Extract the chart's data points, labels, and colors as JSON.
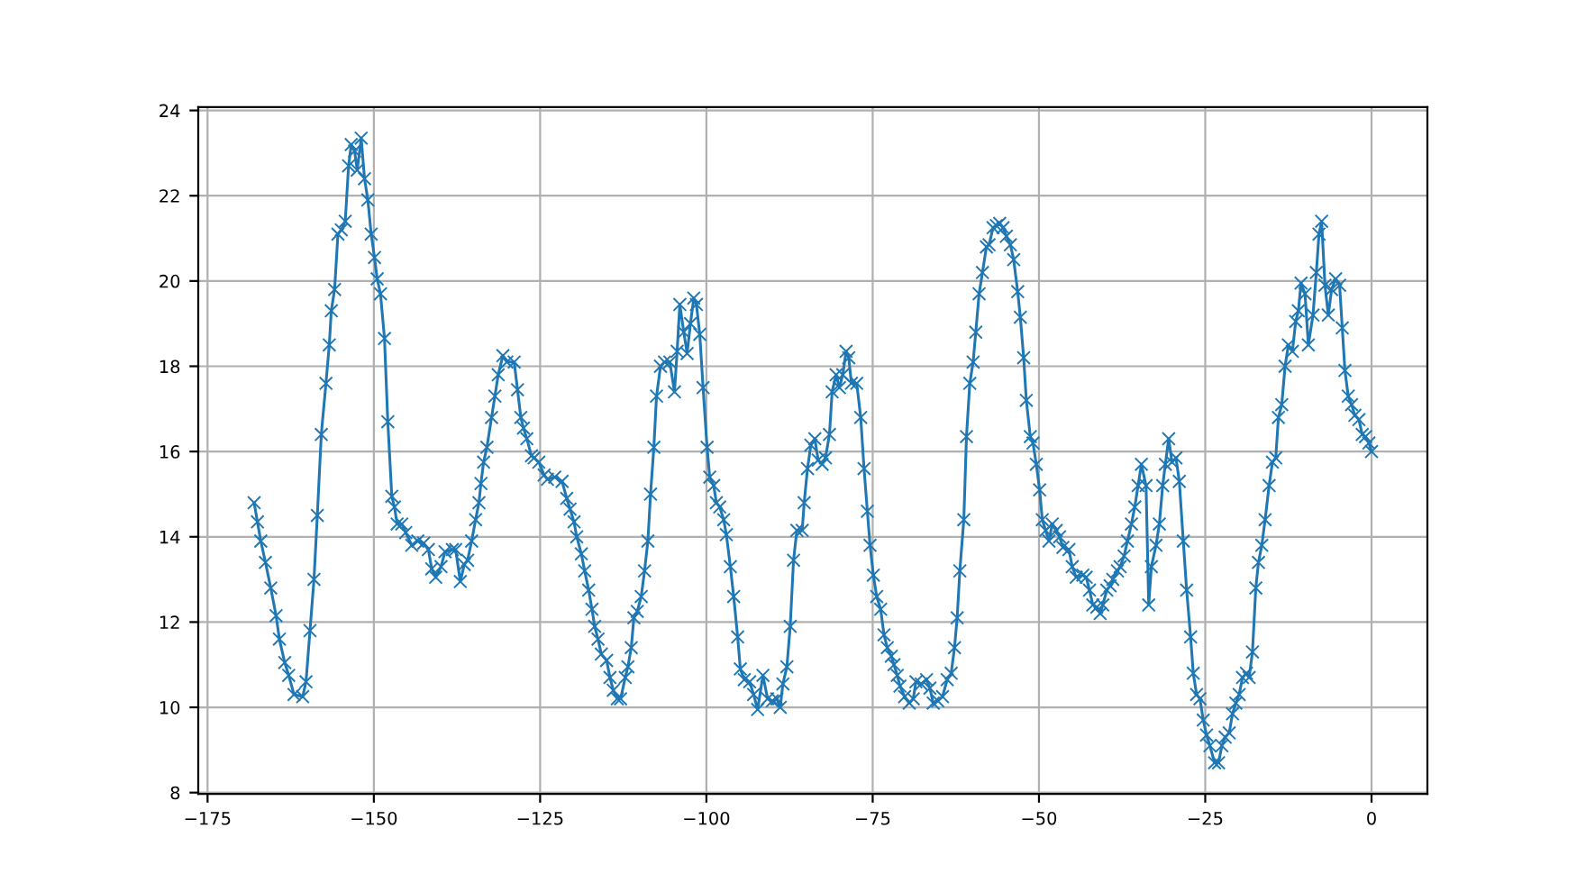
{
  "chart_data": {
    "type": "line",
    "marker": "cross",
    "grid": true,
    "xlim": [
      -176.4,
      8.4
    ],
    "ylim": [
      7.97,
      24.08
    ],
    "xticks": [
      {
        "value": -175,
        "label": "−175"
      },
      {
        "value": -150,
        "label": "−150"
      },
      {
        "value": -125,
        "label": "−125"
      },
      {
        "value": -100,
        "label": "−100"
      },
      {
        "value": -75,
        "label": "−75"
      },
      {
        "value": -50,
        "label": "−50"
      },
      {
        "value": -25,
        "label": "−25"
      },
      0
    ],
    "yticks": [
      8,
      10,
      12,
      14,
      16,
      18,
      20,
      22,
      24
    ],
    "series": [
      {
        "color": "#1f77b4",
        "x": [
          -168,
          -167.5,
          -167,
          -166.3,
          -165.5,
          -164.7,
          -164.2,
          -163.4,
          -162.8,
          -162,
          -160.7,
          -160.2,
          -159.6,
          -159,
          -158.5,
          -157.9,
          -157.2,
          -156.7,
          -156.4,
          -155.9,
          -155.4,
          -154.9,
          -154.3,
          -153.8,
          -153.4,
          -152.9,
          -152.5,
          -151.9,
          -151.4,
          -150.9,
          -150.4,
          -149.9,
          -149.5,
          -149,
          -148.4,
          -147.9,
          -147.3,
          -146.9,
          -146.5,
          -145.8,
          -145.2,
          -144.3,
          -143.4,
          -142.5,
          -141.8,
          -141.3,
          -140.7,
          -139.9,
          -139.3,
          -138.2,
          -137.7,
          -137,
          -136.4,
          -135.9,
          -135.3,
          -134.7,
          -134.2,
          -133.9,
          -133.5,
          -133,
          -132.3,
          -131.8,
          -131.3,
          -130.6,
          -130,
          -128.9,
          -128.4,
          -127.9,
          -127.5,
          -127,
          -126.3,
          -125.9,
          -125.2,
          -124.4,
          -123.9,
          -122.8,
          -121.7,
          -121,
          -120.5,
          -119.9,
          -119.5,
          -118.8,
          -118.3,
          -117.7,
          -117.2,
          -116.8,
          -116.3,
          -115.8,
          -115,
          -114.5,
          -114,
          -113.4,
          -112.9,
          -112.2,
          -111.8,
          -111.3,
          -110.9,
          -110.4,
          -109.8,
          -109.3,
          -108.8,
          -108.4,
          -107.9,
          -107.5,
          -106.9,
          -106.3,
          -105.5,
          -104.8,
          -104.4,
          -104,
          -103.4,
          -102.9,
          -102.4,
          -101.9,
          -101.5,
          -101,
          -100.5,
          -99.9,
          -99.5,
          -98.9,
          -98.5,
          -98,
          -97.4,
          -97,
          -96.4,
          -95.9,
          -95.3,
          -94.9,
          -94.3,
          -93.5,
          -92.9,
          -92.3,
          -91.5,
          -90.8,
          -90.1,
          -89.4,
          -88.9,
          -88.5,
          -87.9,
          -87.4,
          -86.9,
          -86.4,
          -85.6,
          -85.3,
          -84.8,
          -84.3,
          -83.7,
          -83.2,
          -82.6,
          -82.1,
          -81.5,
          -81.1,
          -80.5,
          -80,
          -79.5,
          -79,
          -78.6,
          -78.2,
          -77.4,
          -76.8,
          -76.3,
          -75.8,
          -75.4,
          -74.9,
          -74.4,
          -73.8,
          -73.3,
          -72.8,
          -72.2,
          -71.8,
          -71.3,
          -70.9,
          -70.2,
          -69.5,
          -68.9,
          -68.5,
          -67.7,
          -66.9,
          -66.4,
          -65.9,
          -65.2,
          -64.5,
          -63.8,
          -63.2,
          -62.7,
          -62.3,
          -61.9,
          -61.3,
          -60.9,
          -60.4,
          -59.9,
          -59.5,
          -59,
          -58.5,
          -57.9,
          -57.5,
          -56.9,
          -56.4,
          -55.9,
          -55.4,
          -54.9,
          -54.3,
          -53.8,
          -53.2,
          -52.8,
          -52.3,
          -51.9,
          -51.3,
          -50.9,
          -50.4,
          -49.9,
          -49.5,
          -49,
          -48.5,
          -48,
          -47.4,
          -46.9,
          -46.4,
          -45.5,
          -45,
          -44.4,
          -43.4,
          -42.9,
          -42.4,
          -41.9,
          -41.3,
          -40.8,
          -40.4,
          -39.8,
          -39.3,
          -38.9,
          -38.2,
          -37.8,
          -37.2,
          -36.7,
          -36.1,
          -35.6,
          -35.1,
          -34.6,
          -33.9,
          -33.5,
          -33.1,
          -32.4,
          -31.9,
          -31.4,
          -31,
          -30.5,
          -30,
          -29.4,
          -28.9,
          -28.3,
          -27.8,
          -27.2,
          -26.8,
          -26.3,
          -25.8,
          -25.3,
          -24.8,
          -24.3,
          -23.6,
          -23,
          -22.5,
          -22,
          -21.4,
          -20.9,
          -20.4,
          -19.9,
          -19.4,
          -18.8,
          -18.4,
          -17.9,
          -17.4,
          -17,
          -16.5,
          -16,
          -15.4,
          -14.9,
          -14.4,
          -14,
          -13.5,
          -13,
          -12.5,
          -11.9,
          -11.4,
          -11,
          -10.6,
          -10,
          -9.5,
          -8.8,
          -8.3,
          -7.9,
          -7.5,
          -7,
          -6.5,
          -6,
          -5.4,
          -4.8,
          -4.4,
          -4,
          -3.5,
          -3,
          -2.5,
          -1.9,
          -1.4,
          -0.9,
          -0.4,
          0
        ],
        "values": [
          14.8,
          14.35,
          13.9,
          13.4,
          12.8,
          12.15,
          11.6,
          11.05,
          10.75,
          10.3,
          10.25,
          10.6,
          11.8,
          13,
          14.5,
          16.4,
          17.6,
          18.5,
          19.3,
          19.8,
          21.1,
          21.2,
          21.4,
          22.7,
          23.2,
          23.05,
          22.6,
          23.35,
          22.4,
          21.9,
          21.1,
          20.55,
          20.05,
          19.7,
          18.65,
          16.7,
          14.95,
          14.7,
          14.3,
          14.3,
          14.1,
          13.8,
          13.9,
          13.85,
          13.7,
          13.25,
          13.05,
          13.3,
          13.65,
          13.7,
          13.7,
          12.95,
          13.35,
          13.45,
          13.9,
          14.4,
          14.8,
          15.25,
          15.75,
          16.1,
          16.8,
          17.3,
          17.8,
          18.25,
          18.1,
          18.1,
          17.45,
          16.8,
          16.55,
          16.3,
          15.9,
          15.85,
          15.75,
          15.45,
          15.35,
          15.4,
          15.3,
          14.9,
          14.65,
          14.35,
          14,
          13.6,
          13.2,
          12.75,
          12.3,
          11.9,
          11.6,
          11.25,
          11.1,
          10.7,
          10.4,
          10.2,
          10.2,
          10.7,
          10.95,
          11.4,
          12.1,
          12.25,
          12.6,
          13.2,
          13.9,
          15,
          16.1,
          17.3,
          18,
          18.1,
          18.1,
          17.4,
          18.35,
          19.45,
          18.8,
          18.3,
          19,
          19.6,
          19.45,
          18.75,
          17.5,
          16.1,
          15.4,
          15.2,
          14.8,
          14.7,
          14.4,
          14.05,
          13.3,
          12.6,
          11.65,
          10.9,
          10.65,
          10.6,
          10.3,
          9.95,
          10.75,
          10.2,
          10.15,
          10.2,
          10,
          10.55,
          10.95,
          11.9,
          13.45,
          14.15,
          14.15,
          14.8,
          15.6,
          16.15,
          16.3,
          15.8,
          15.7,
          15.85,
          16.4,
          17.4,
          17.8,
          17.5,
          17.8,
          18.35,
          18.2,
          17.6,
          17.6,
          16.8,
          15.6,
          14.6,
          13.8,
          13.1,
          12.6,
          12.3,
          11.7,
          11.4,
          11.2,
          11,
          10.75,
          10.5,
          10.25,
          10.1,
          10.2,
          10.6,
          10.55,
          10.65,
          10.45,
          10.1,
          10.15,
          10.25,
          10.65,
          10.8,
          11.4,
          12.1,
          13.2,
          14.4,
          16.35,
          17.6,
          18.1,
          18.8,
          19.7,
          20.2,
          20.8,
          20.85,
          21.25,
          21.3,
          21.35,
          21.25,
          21.05,
          20.85,
          20.5,
          19.75,
          19.15,
          18.2,
          17.2,
          16.35,
          16.2,
          15.7,
          15.1,
          14.4,
          14.15,
          13.9,
          14.3,
          14.15,
          14,
          13.75,
          13.7,
          13.3,
          13.05,
          13.1,
          13.05,
          12.75,
          12.4,
          12.35,
          12.2,
          12.4,
          12.75,
          12.85,
          13,
          13.2,
          13.3,
          13.55,
          13.9,
          14.3,
          14.7,
          15.2,
          15.7,
          15.2,
          12.4,
          13.3,
          13.8,
          14.3,
          15.2,
          15.7,
          16.3,
          15.75,
          15.85,
          15.3,
          13.9,
          12.75,
          11.65,
          10.8,
          10.3,
          10.2,
          9.7,
          9.35,
          9.1,
          8.7,
          8.7,
          9.1,
          9.3,
          9.4,
          9.85,
          10.1,
          10.3,
          10.7,
          10.8,
          10.7,
          11.3,
          12.8,
          13.4,
          13.8,
          14.4,
          15.2,
          15.75,
          15.85,
          16.8,
          17.1,
          18,
          18.5,
          18.35,
          19.05,
          19.3,
          19.95,
          19.7,
          18.5,
          19.2,
          20.2,
          21.1,
          21.4,
          19.9,
          19.2,
          19.8,
          20.05,
          19.9,
          18.9,
          17.9,
          17.3,
          17.1,
          16.85,
          16.75,
          16.4,
          16.35,
          16.2,
          16
        ]
      }
    ]
  }
}
